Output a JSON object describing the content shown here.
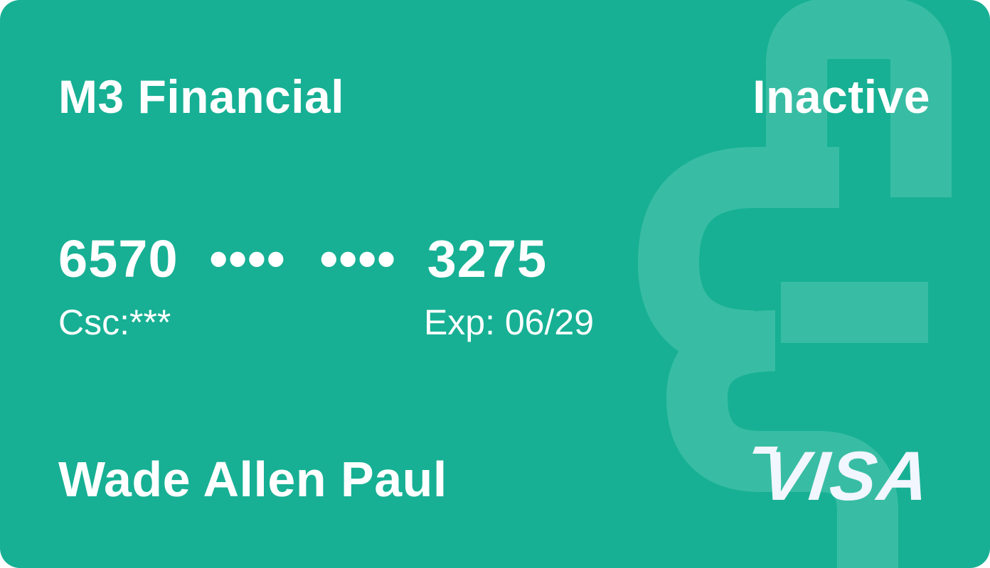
{
  "card": {
    "background_color": "#17B094",
    "watermark_color": "#38BDA4",
    "issuer": "M3 Financial",
    "status": "Inactive",
    "number": {
      "first_group": "6570",
      "masked_group_1": "••••",
      "masked_group_2": "••••",
      "last_group": "3275"
    },
    "csc": "Csc:***",
    "expiry": "Exp: 06/29",
    "holder_name": "Wade Allen Paul",
    "brand": "VISA",
    "icons": {
      "watermark": "m3-logo-watermark-icon",
      "brand_logo": "visa-logo-icon"
    }
  }
}
